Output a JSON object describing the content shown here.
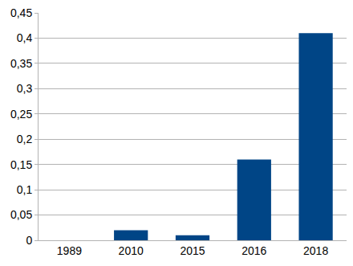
{
  "chart_data": {
    "type": "bar",
    "categories": [
      "1989",
      "2010",
      "2015",
      "2016",
      "2018"
    ],
    "values": [
      0,
      0.02,
      0.01,
      0.16,
      0.41
    ],
    "color": "#004586",
    "ylim": [
      0,
      0.45
    ],
    "yticks": [
      0,
      {
        "value": 0.05,
        "label": "0,05"
      },
      {
        "value": 0.1,
        "label": "0,1"
      },
      {
        "value": 0.15,
        "label": "0,15"
      },
      {
        "value": 0.2,
        "label": "0,2"
      },
      {
        "value": 0.25,
        "label": "0,25"
      },
      {
        "value": 0.3,
        "label": "0,3"
      },
      {
        "value": 0.35,
        "label": "0,35"
      },
      {
        "value": 0.4,
        "label": "0,4"
      },
      {
        "value": 0.45,
        "label": "0,45"
      }
    ],
    "grid": true
  }
}
